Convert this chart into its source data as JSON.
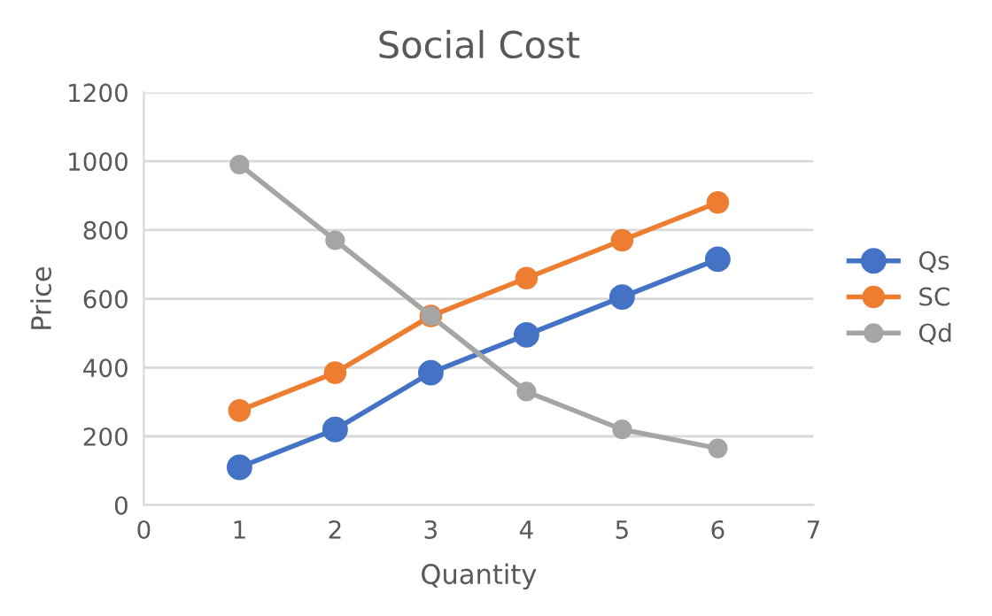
{
  "chart_data": {
    "type": "line",
    "title": "Social Cost",
    "xlabel": "Quantity",
    "ylabel": "Price",
    "x": [
      1,
      2,
      3,
      4,
      5,
      6
    ],
    "series": [
      {
        "name": "Qs",
        "color": "#4472c4",
        "values": [
          110,
          220,
          385,
          495,
          605,
          715
        ]
      },
      {
        "name": "SC",
        "color": "#ed7d31",
        "values": [
          275,
          385,
          550,
          660,
          770,
          880
        ]
      },
      {
        "name": "Qd",
        "color": "#a5a5a5",
        "values": [
          990,
          770,
          550,
          330,
          220,
          165
        ]
      }
    ],
    "xlim": [
      0,
      7
    ],
    "xticks": [
      0,
      1,
      2,
      3,
      4,
      5,
      6,
      7
    ],
    "ylim": [
      0,
      1200
    ],
    "yticks": [
      0,
      200,
      400,
      600,
      800,
      1000,
      1200
    ],
    "grid": "y",
    "legend": "right",
    "marker": "circle",
    "line_style": "solid"
  }
}
